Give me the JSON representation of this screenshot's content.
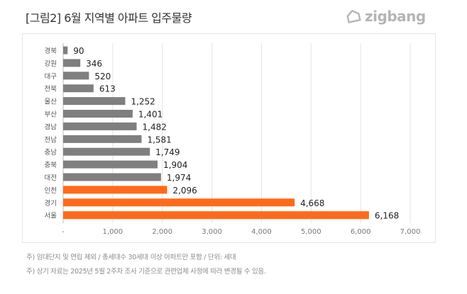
{
  "header": {
    "title": "[그림2] 6월 지역별 아파트 입주물량",
    "logo_text": "zigbang"
  },
  "chart_data": {
    "type": "bar",
    "orientation": "horizontal",
    "categories": [
      "경북",
      "강원",
      "대구",
      "전북",
      "울산",
      "부산",
      "경남",
      "전남",
      "충남",
      "충북",
      "대전",
      "인천",
      "경기",
      "서울"
    ],
    "values": [
      90,
      346,
      520,
      613,
      1252,
      1401,
      1482,
      1581,
      1749,
      1904,
      1974,
      2096,
      4668,
      6168
    ],
    "data_labels": [
      "90",
      "346",
      "520",
      "613",
      "1,252",
      "1,401",
      "1,482",
      "1,581",
      "1,749",
      "1,904",
      "1,974",
      "2,096",
      "4,668",
      "6,168"
    ],
    "highlighted": [
      "인천",
      "경기",
      "서울"
    ],
    "colors": {
      "default": "#7f7f7f",
      "highlight": "#ff6a1a"
    },
    "xlim": [
      0,
      7000
    ],
    "x_ticks": [
      0,
      1000,
      2000,
      3000,
      4000,
      5000,
      6000,
      7000
    ],
    "x_tick_labels": [
      "-",
      "1,000",
      "2,000",
      "3,000",
      "4,000",
      "5,000",
      "6,000",
      "7,000"
    ],
    "grid": "vertical",
    "title": "",
    "xlabel": "",
    "ylabel": ""
  },
  "notes": [
    "주) 임대단지 및 연립 제외 / 총세대수 30세대 이상 아파트만 포함 / 단위: 세대",
    "주) 상기 자료는 2025년 5월 2주차 조사 기준으로 관련업체 사정에 따라 변경될 수 있음."
  ]
}
